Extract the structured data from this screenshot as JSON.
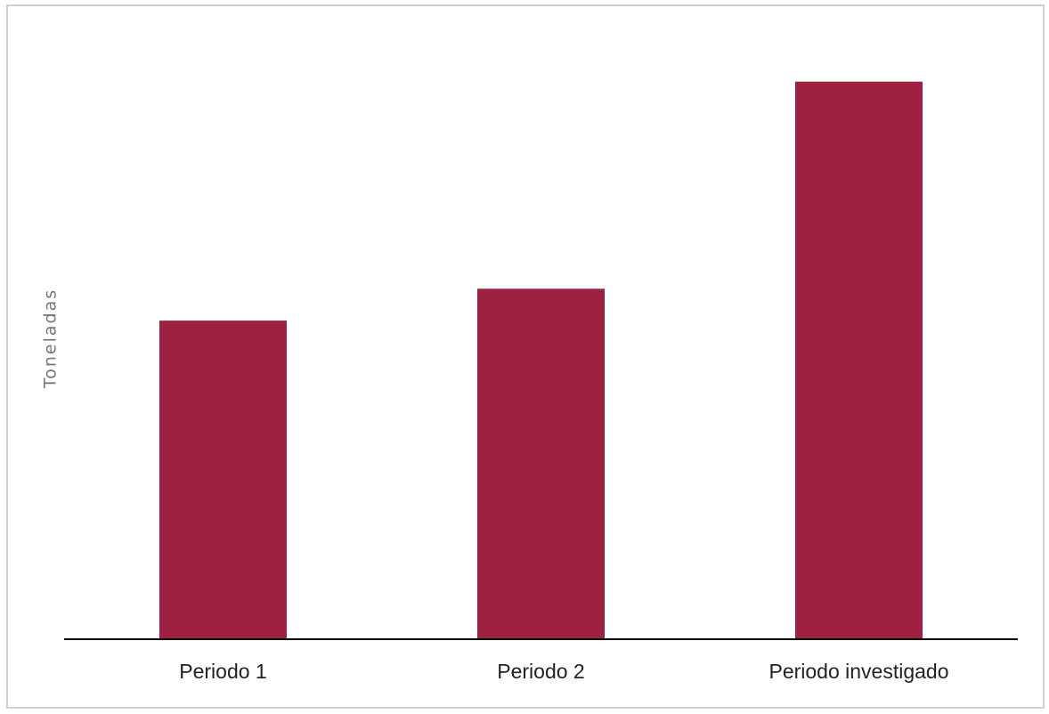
{
  "chart_data": {
    "type": "bar",
    "y_label": "Toneladas",
    "categories": [
      "Periodo 1",
      "Periodo 2",
      "Periodo investigado"
    ],
    "values": [
      100,
      110,
      175
    ],
    "color": "#9e2142",
    "ylim": [
      0,
      190
    ],
    "grid": false
  }
}
